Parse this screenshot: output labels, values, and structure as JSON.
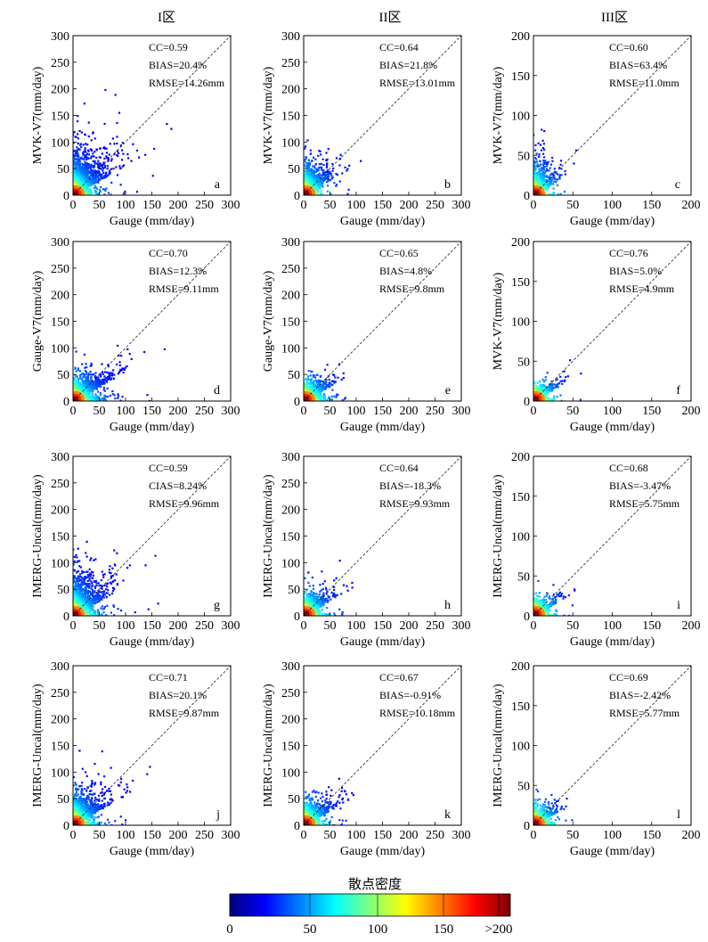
{
  "columns": [
    "I区",
    "II区",
    "III区"
  ],
  "xlabel": "Gauge (mm/day)",
  "colorbar": {
    "title": "散点密度",
    "ticks": [
      "0",
      "50",
      "100",
      "150",
      ">200"
    ],
    "colors": [
      "#00007f",
      "#0000ff",
      "#0080ff",
      "#00ffff",
      "#80ff80",
      "#ffff00",
      "#ff8000",
      "#ff0000",
      "#7f0000"
    ]
  },
  "chart_data": [
    {
      "type": "scatter",
      "panel": "a",
      "ylabel": "MVK-V7(mm/day)",
      "xlim": [
        0,
        300
      ],
      "ylim": [
        0,
        300
      ],
      "xticks": [
        "0",
        "50",
        "100",
        "150",
        "200",
        "250",
        "300"
      ],
      "yticks": [
        "0",
        "50",
        "100",
        "150",
        "200",
        "250",
        "300"
      ],
      "stats": [
        "CC=0.59",
        "BIAS=20.4%",
        "RMSE=14.26mm"
      ],
      "spread": [
        1.0,
        1.25
      ],
      "n": 1300
    },
    {
      "type": "scatter",
      "panel": "b",
      "ylabel": "MVK-V7(mm/day)",
      "xlim": [
        0,
        300
      ],
      "ylim": [
        0,
        300
      ],
      "xticks": [
        "0",
        "50",
        "100",
        "150",
        "200",
        "250",
        "300"
      ],
      "yticks": [
        "0",
        "50",
        "100",
        "150",
        "200",
        "250",
        "300"
      ],
      "stats": [
        "CC=0.64",
        "BIAS=21.8%",
        "RMSE=13.01mm"
      ],
      "spread": [
        0.65,
        0.85
      ],
      "n": 900
    },
    {
      "type": "scatter",
      "panel": "c",
      "ylabel": "MVK-V7(mm/day)",
      "xlim": [
        0,
        200
      ],
      "ylim": [
        0,
        200
      ],
      "xticks": [
        "0",
        "50",
        "100",
        "150",
        "200"
      ],
      "yticks": [
        "0",
        "50",
        "100",
        "150",
        "200"
      ],
      "stats": [
        "CC=0.60",
        "BIAS=63.4%",
        "RMSE=11.0mm"
      ],
      "spread": [
        0.55,
        0.9
      ],
      "n": 700
    },
    {
      "type": "scatter",
      "panel": "d",
      "ylabel": "Gauge-V7(mm/day)",
      "xlim": [
        0,
        300
      ],
      "ylim": [
        0,
        300
      ],
      "xticks": [
        "0",
        "50",
        "100",
        "150",
        "200",
        "250",
        "300"
      ],
      "yticks": [
        "0",
        "50",
        "100",
        "150",
        "200",
        "250",
        "300"
      ],
      "stats": [
        "CC=0.70",
        "BIAS=12.3%",
        "RMSE=9.11mm"
      ],
      "spread": [
        1.0,
        0.55
      ],
      "n": 1300
    },
    {
      "type": "scatter",
      "panel": "e",
      "ylabel": "Gauge-V7(mm/day)",
      "xlim": [
        0,
        300
      ],
      "ylim": [
        0,
        300
      ],
      "xticks": [
        "0",
        "50",
        "100",
        "150",
        "200",
        "250",
        "300"
      ],
      "yticks": [
        "0",
        "50",
        "100",
        "150",
        "200",
        "250",
        "300"
      ],
      "stats": [
        "CC=0.65",
        "BIAS=4.8%",
        "RMSE=9.8mm"
      ],
      "spread": [
        0.7,
        0.5
      ],
      "n": 900
    },
    {
      "type": "scatter",
      "panel": "f",
      "ylabel": "MVK-V7(mm/day)",
      "xlim": [
        0,
        200
      ],
      "ylim": [
        0,
        200
      ],
      "xticks": [
        "0",
        "50",
        "100",
        "150",
        "200"
      ],
      "yticks": [
        "0",
        "50",
        "100",
        "150",
        "200"
      ],
      "stats": [
        "CC=0.76",
        "BIAS=5.0%",
        "RMSE=4.9mm"
      ],
      "spread": [
        0.6,
        0.35
      ],
      "n": 600
    },
    {
      "type": "scatter",
      "panel": "g",
      "ylabel": "IMERG-Uncal(mm/day)",
      "xlim": [
        0,
        300
      ],
      "ylim": [
        0,
        300
      ],
      "xticks": [
        "0",
        "50",
        "100",
        "150",
        "200",
        "250",
        "300"
      ],
      "yticks": [
        "0",
        "50",
        "100",
        "150",
        "200",
        "250",
        "300"
      ],
      "stats": [
        "CC=0.59",
        "CIAS=8.24%",
        "RMSE=9.96mm"
      ],
      "spread": [
        0.85,
        1.05
      ],
      "n": 1300
    },
    {
      "type": "scatter",
      "panel": "h",
      "ylabel": "IMERG-Uncal(mm/day)",
      "xlim": [
        0,
        300
      ],
      "ylim": [
        0,
        300
      ],
      "xticks": [
        "0",
        "50",
        "100",
        "150",
        "200",
        "250",
        "300"
      ],
      "yticks": [
        "0",
        "50",
        "100",
        "150",
        "200",
        "250",
        "300"
      ],
      "stats": [
        "CC=0.64",
        "BIAS=-18.3%",
        "RMSE=9.93mm"
      ],
      "spread": [
        0.7,
        0.55
      ],
      "n": 900
    },
    {
      "type": "scatter",
      "panel": "i",
      "ylabel": "IMERG-Uncal(mm/day)",
      "xlim": [
        0,
        200
      ],
      "ylim": [
        0,
        200
      ],
      "xticks": [
        "0",
        "50",
        "100",
        "150",
        "200"
      ],
      "yticks": [
        "0",
        "50",
        "100",
        "150",
        "200"
      ],
      "stats": [
        "CC=0.68",
        "BIAS=-3.47%",
        "RMSE=5.75mm"
      ],
      "spread": [
        0.6,
        0.4
      ],
      "n": 600
    },
    {
      "type": "scatter",
      "panel": "j",
      "ylabel": "IMERG-Uncal(mm/day)",
      "xlim": [
        0,
        300
      ],
      "ylim": [
        0,
        300
      ],
      "xticks": [
        "0",
        "50",
        "100",
        "150",
        "200",
        "250",
        "300"
      ],
      "yticks": [
        "0",
        "50",
        "100",
        "150",
        "200",
        "250",
        "300"
      ],
      "stats": [
        "CC=0.71",
        "BIAS=20.1%",
        "RMSE=9.87mm"
      ],
      "spread": [
        0.85,
        0.8
      ],
      "n": 1300
    },
    {
      "type": "scatter",
      "panel": "k",
      "ylabel": "IMERG-Uncal(mm/day)",
      "xlim": [
        0,
        300
      ],
      "ylim": [
        0,
        300
      ],
      "xticks": [
        "0",
        "50",
        "100",
        "150",
        "200",
        "250",
        "300"
      ],
      "yticks": [
        "0",
        "50",
        "100",
        "150",
        "200",
        "250",
        "300"
      ],
      "stats": [
        "CC=0.67",
        "BIAS=-0.91%",
        "RMSE=10.18mm"
      ],
      "spread": [
        0.7,
        0.6
      ],
      "n": 900
    },
    {
      "type": "scatter",
      "panel": "l",
      "ylabel": "IMERG-Uncal(mm/day)",
      "xlim": [
        0,
        200
      ],
      "ylim": [
        0,
        200
      ],
      "xticks": [
        "0",
        "50",
        "100",
        "150",
        "200"
      ],
      "yticks": [
        "0",
        "50",
        "100",
        "150",
        "200"
      ],
      "stats": [
        "CC=0.69",
        "BIAS=-2.42%",
        "RMSE=5.77mm"
      ],
      "spread": [
        0.6,
        0.45
      ],
      "n": 600
    }
  ]
}
